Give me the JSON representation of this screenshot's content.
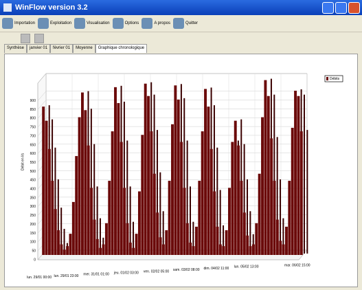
{
  "window": {
    "title": "WinFlow version 3.2"
  },
  "toolbar": [
    "Importation",
    "Exploitation",
    "Visualisation",
    "Options",
    "A propos",
    "Quitter"
  ],
  "tabs": [
    "Synthèse",
    "janvier 01",
    "février 01",
    "Moyenne",
    "Graphique chronologique"
  ],
  "chart_data": {
    "type": "bar",
    "y_label": "Débit en l/s",
    "categories": [
      "lun. 29/01 00:00",
      null,
      null,
      null,
      null,
      null,
      null,
      null,
      null,
      "lun. 29/01 23:00",
      null,
      null,
      null,
      null,
      null,
      null,
      null,
      null,
      null,
      "mer. 31/01 01:00",
      null,
      null,
      null,
      null,
      null,
      null,
      null,
      null,
      null,
      "jeu. 01/02 03:00",
      null,
      null,
      null,
      null,
      null,
      null,
      null,
      null,
      null,
      "ven. 02/02 05:00",
      null,
      null,
      null,
      null,
      null,
      null,
      null,
      null,
      null,
      "sam. 03/02 08:00",
      null,
      null,
      null,
      null,
      null,
      null,
      null,
      null,
      null,
      "dim. 04/02 11:00",
      null,
      null,
      null,
      null,
      null,
      null,
      null,
      null,
      null,
      "lun. 05/02 13:00",
      null,
      null,
      null,
      null,
      null,
      null,
      null,
      null,
      null,
      null,
      null,
      null,
      null,
      null,
      null,
      null,
      "mar. 06/02 15:00"
    ],
    "series": [
      {
        "name": "Débits",
        "color": "#6b0a0a",
        "values": [
          840,
          760,
          600,
          420,
          260,
          140,
          60,
          30,
          50,
          120,
          300,
          560,
          780,
          920,
          820,
          620,
          380,
          200,
          90,
          40,
          60,
          180,
          420,
          700,
          950,
          860,
          640,
          380,
          180,
          70,
          40,
          120,
          360,
          680,
          970,
          900,
          700,
          460,
          240,
          100,
          60,
          140,
          420,
          740,
          960,
          880,
          640,
          380,
          180,
          70,
          50,
          160,
          420,
          700,
          940,
          840,
          600,
          360,
          160,
          60,
          50,
          140,
          380,
          640,
          760,
          620,
          420,
          240,
          110,
          50,
          60,
          180,
          460,
          780,
          990,
          900,
          660,
          420,
          200,
          80,
          60,
          160,
          420,
          720,
          930,
          900,
          700
        ]
      }
    ],
    "ylim": [
      0,
      1000
    ],
    "yticks": [
      0,
      50,
      100,
      150,
      200,
      250,
      300,
      350,
      400,
      450,
      500,
      550,
      600,
      650,
      700,
      750,
      800,
      850,
      900
    ],
    "grid": true
  }
}
